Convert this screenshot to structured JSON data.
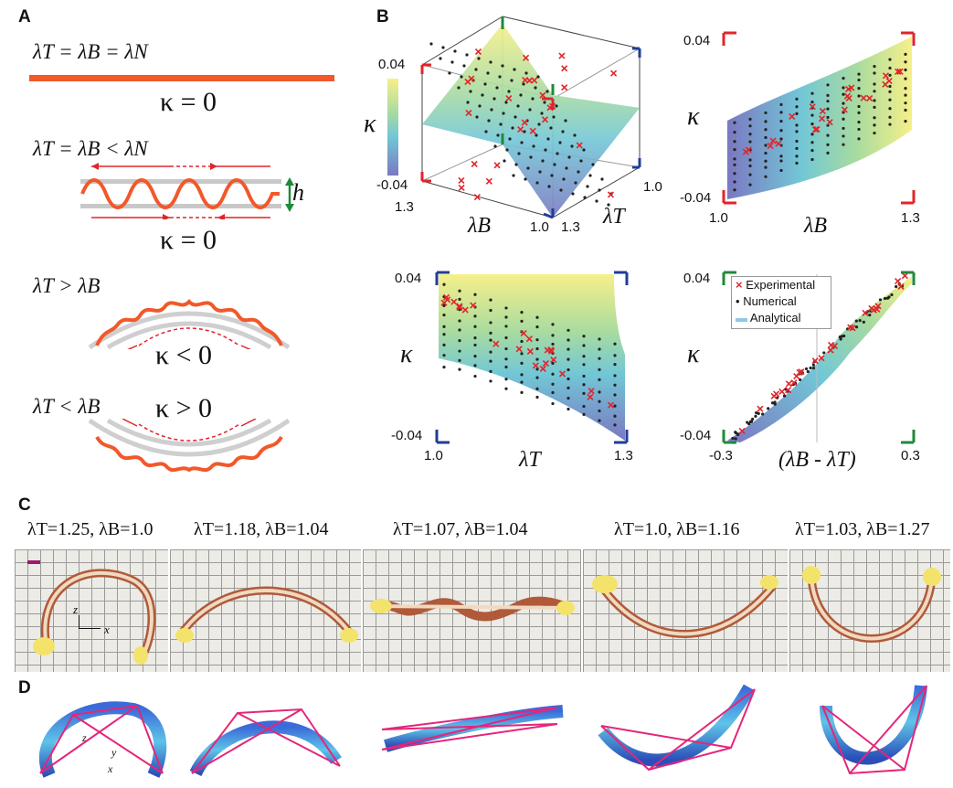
{
  "panel_a": {
    "label": "A",
    "eq1": "λT = λB = λN",
    "k1": "κ = 0",
    "eq2": "λT = λB < λN",
    "h_label": "h",
    "k2": "κ = 0",
    "eq3": "λT > λB",
    "k3": "κ < 0",
    "eq4": "λT < λB",
    "k4": "κ > 0"
  },
  "panel_b": {
    "label": "B",
    "plot3d": {
      "kappa_label": "κ",
      "k_max": "0.04",
      "k_min": "-0.04",
      "lb_max": "1.3",
      "lb_min": "1.0",
      "lt_min": "1.3",
      "lt_max": "1.0",
      "lb_label": "λB",
      "lt_label": "λT"
    },
    "plot_lb": {
      "kappa_label": "κ",
      "y_max": "0.04",
      "y_min": "-0.04",
      "x_min": "1.0",
      "x_max": "1.3",
      "x_label": "λB"
    },
    "plot_lt": {
      "kappa_label": "κ",
      "y_max": "0.04",
      "y_min": "-0.04",
      "x_min": "1.0",
      "x_max": "1.3",
      "x_label": "λT"
    },
    "plot_diff": {
      "kappa_label": "κ",
      "y_max": "0.04",
      "y_min": "-0.04",
      "x_min": "-0.3",
      "x_max": "0.3",
      "x_label": "(λB - λT)"
    },
    "legend": [
      {
        "marker": "×",
        "label": "Experimental",
        "color": "#e0252b"
      },
      {
        "marker": "•",
        "label": "Numerical",
        "color": "#222222"
      },
      {
        "marker": "▬",
        "label": "Analytical",
        "color": "#8fc7e3"
      }
    ]
  },
  "panel_c": {
    "label": "C",
    "captions": [
      "λT=1.25, λB=1.0",
      "λT=1.18, λB=1.04",
      "λT=1.07, λB=1.04",
      "λT=1.0, λB=1.16",
      "λT=1.03, λB=1.27"
    ],
    "axis_z": "z",
    "axis_x": "x"
  },
  "panel_d": {
    "label": "D",
    "axis_z": "z",
    "axis_y": "y",
    "axis_x": "x"
  },
  "colors": {
    "orange": "#f2582a",
    "red": "#e0252b",
    "blue": "#1f3d99",
    "green": "#1f8a3a",
    "magenta": "#e4267a"
  }
}
